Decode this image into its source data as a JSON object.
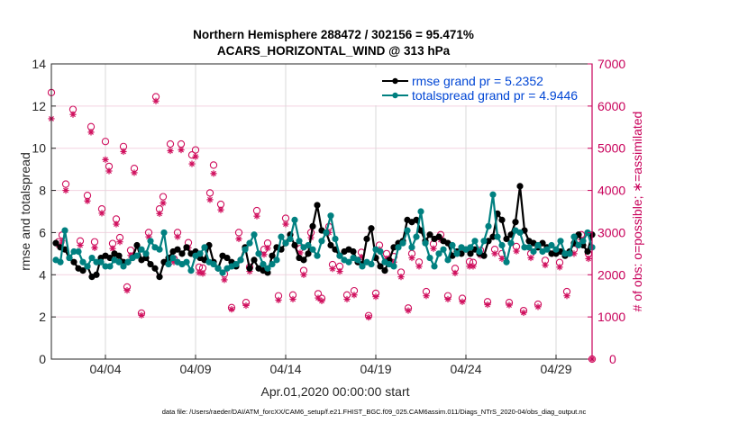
{
  "chart_data": {
    "type": "line",
    "title": "Northern Hemisphere 288472 / 302156 = 95.471%",
    "subtitle": "ACARS_HORIZONTAL_WIND @ 313 hPa",
    "xlabel": "Apr.01,2020 00:00:00 start",
    "ylabel": "rmse and totalspread",
    "y2label": "# of obs: o=possible; ∗=assimilated",
    "footnote": "data file: /Users/raeder/DAI/ATM_forcXX/CAM6_setup/f.e21.FHIST_BGC.f09_025.CAM6assim.011/Diags_NTrS_2020-04/obs_diag_output.nc",
    "xlim_days": [
      1,
      31
    ],
    "ylim": [
      0,
      14
    ],
    "y2lim": [
      0,
      7000
    ],
    "grid": true,
    "legend_position": "top-right",
    "x_ticks": [
      {
        "day": 4,
        "label": "04/04"
      },
      {
        "day": 9,
        "label": "04/09"
      },
      {
        "day": 14,
        "label": "04/14"
      },
      {
        "day": 19,
        "label": "04/19"
      },
      {
        "day": 24,
        "label": "04/24"
      },
      {
        "day": 29,
        "label": "04/29"
      }
    ],
    "y_ticks": [
      "0",
      "2",
      "4",
      "6",
      "8",
      "10",
      "12",
      "14"
    ],
    "y2_ticks": [
      "0",
      "1000",
      "2000",
      "3000",
      "4000",
      "5000",
      "6000",
      "7000"
    ],
    "x_start_day": 1,
    "x_step_days": 0.25,
    "series": [
      {
        "name": "rmse",
        "legend": "rmse grand pr = 5.2352",
        "color": "#000000",
        "values": [
          5.5,
          5.3,
          5.2,
          4.8,
          4.6,
          4.3,
          4.2,
          4.4,
          3.9,
          4.0,
          4.8,
          4.9,
          4.8,
          5.0,
          4.9,
          4.6,
          4.6,
          4.8,
          5.4,
          4.7,
          4.8,
          4.5,
          4.3,
          3.9,
          4.6,
          4.8,
          5.1,
          5.2,
          5.0,
          5.3,
          5.0,
          5.1,
          4.8,
          4.7,
          5.4,
          4.6,
          4.3,
          4.9,
          4.8,
          4.6,
          4.4,
          4.7,
          5.3,
          4.3,
          4.7,
          4.3,
          4.2,
          4.1,
          4.9,
          5.3,
          5.2,
          5.5,
          5.9,
          5.4,
          4.8,
          4.7,
          5.0,
          6.3,
          7.3,
          6.1,
          6.0,
          5.4,
          5.2,
          4.9,
          5.1,
          5.2,
          5.1,
          4.6,
          4.5,
          5.7,
          6.2,
          4.8,
          4.4,
          4.2,
          4.7,
          5.3,
          5.5,
          5.6,
          6.6,
          6.5,
          6.6,
          6.1,
          5.6,
          5.9,
          5.7,
          5.8,
          5.6,
          5.5,
          4.9,
          5.1,
          5.0,
          5.2,
          5.0,
          5.2,
          5.0,
          4.9,
          5.6,
          5.8,
          6.9,
          6.6,
          5.7,
          5.9,
          6.5,
          8.2,
          6.1,
          5.6,
          5.5,
          5.3,
          5.5,
          5.3,
          5.0,
          5.0,
          5.1,
          4.9,
          5.1,
          5.5,
          5.9,
          5.4,
          5.1,
          5.9
        ]
      },
      {
        "name": "totalspread",
        "legend": "totalspread grand pr = 4.9446",
        "color": "#008080",
        "values": [
          4.7,
          4.6,
          6.1,
          4.8,
          5.1,
          5.1,
          4.6,
          4.4,
          4.8,
          4.6,
          4.6,
          4.4,
          4.4,
          4.7,
          4.6,
          4.4,
          4.6,
          4.8,
          4.9,
          5.2,
          5.0,
          5.6,
          5.3,
          5.2,
          6.0,
          4.5,
          4.8,
          4.6,
          4.5,
          4.6,
          4.2,
          4.9,
          5.0,
          5.3,
          4.6,
          4.5,
          4.3,
          4.1,
          4.3,
          4.4,
          4.5,
          4.7,
          5.2,
          5.5,
          5.9,
          5.0,
          4.5,
          4.3,
          4.5,
          4.7,
          5.8,
          5.5,
          5.7,
          6.6,
          5.6,
          5.3,
          5.4,
          5.2,
          4.9,
          5.6,
          6.0,
          6.8,
          5.7,
          4.9,
          4.7,
          4.6,
          4.8,
          4.7,
          4.4,
          4.6,
          4.5,
          5.2,
          5.1,
          4.6,
          4.5,
          4.4,
          5.3,
          5.5,
          6.1,
          5.3,
          5.8,
          7.0,
          5.5,
          4.8,
          4.4,
          5.0,
          5.2,
          4.7,
          5.4,
          5.0,
          5.3,
          5.2,
          5.3,
          5.6,
          5.1,
          5.6,
          6.3,
          7.8,
          5.8,
          5.4,
          4.6,
          5.5,
          6.1,
          6.0,
          5.3,
          5.3,
          5.1,
          5.4,
          5.1,
          5.2,
          5.4,
          5.2,
          5.6,
          5.0,
          5.0,
          5.8,
          5.4,
          5.6,
          6.0,
          5.3
        ]
      }
    ],
    "obs_possible": {
      "marker": "o",
      "color": "#d0105e",
      "days": [
        1.0,
        1.4,
        1.6,
        1.8,
        2.2,
        2.6,
        3.0,
        3.2,
        3.4,
        3.8,
        4.0,
        4.2,
        4.4,
        4.6,
        4.8,
        5.0,
        5.2,
        5.4,
        5.6,
        6.0,
        6.4,
        6.8,
        7.0,
        7.2,
        7.6,
        7.8,
        8.0,
        8.2,
        8.6,
        8.8,
        9.0,
        9.2,
        9.4,
        9.8,
        10.0,
        10.4,
        10.6,
        11.0,
        11.4,
        11.8,
        12.0,
        12.4,
        12.8,
        13.0,
        13.6,
        14.0,
        14.4,
        14.8,
        15.0,
        15.4,
        15.8,
        16.0,
        16.4,
        16.6,
        17.0,
        17.4,
        17.8,
        18.2,
        18.6,
        19.0,
        19.2,
        19.6,
        20.0,
        20.4,
        20.8,
        21.0,
        21.4,
        21.8,
        22.2,
        22.6,
        23.0,
        23.4,
        23.8,
        24.2,
        24.4,
        24.8,
        25.2,
        25.6,
        26.0,
        26.4,
        26.8,
        27.2,
        27.6,
        28.0,
        28.4,
        28.8,
        29.2,
        29.6,
        30.0,
        30.4,
        30.8,
        31.0
      ],
      "values": [
        6320,
        2780,
        2940,
        4150,
        5920,
        2800,
        3880,
        5510,
        2780,
        3560,
        5160,
        4570,
        2740,
        3320,
        2880,
        5040,
        1710,
        2580,
        4520,
        1090,
        3000,
        6220,
        3560,
        3850,
        5100,
        2380,
        3000,
        5100,
        2760,
        4840,
        4960,
        2180,
        2160,
        3940,
        4600,
        3670,
        2020,
        1220,
        3000,
        1340,
        2180,
        3520,
        2600,
        2750,
        1500,
        3340,
        1520,
        2620,
        2100,
        3000,
        1550,
        1440,
        3140,
        2240,
        2200,
        1520,
        1620,
        2530,
        1030,
        1560,
        2700,
        2500,
        2430,
        2060,
        1210,
        2500,
        2300,
        1600,
        2730,
        2950,
        1500,
        2150,
        1440,
        2310,
        2290,
        2580,
        1360,
        2600,
        2500,
        1340,
        2670,
        1150,
        2500,
        1300,
        2340,
        2600,
        2290,
        1600,
        2600,
        2950,
        2500,
        0
      ]
    },
    "obs_assimilated": {
      "marker": "*",
      "color": "#d0105e",
      "days": [
        1.0,
        1.4,
        1.6,
        1.8,
        2.2,
        2.6,
        3.0,
        3.2,
        3.4,
        3.8,
        4.0,
        4.2,
        4.4,
        4.6,
        4.8,
        5.0,
        5.2,
        5.4,
        5.6,
        6.0,
        6.4,
        6.8,
        7.0,
        7.2,
        7.6,
        7.8,
        8.0,
        8.2,
        8.6,
        8.8,
        9.0,
        9.2,
        9.4,
        9.8,
        10.0,
        10.4,
        10.6,
        11.0,
        11.4,
        11.8,
        12.0,
        12.4,
        12.8,
        13.0,
        13.6,
        14.0,
        14.4,
        14.8,
        15.0,
        15.4,
        15.8,
        16.0,
        16.4,
        16.6,
        17.0,
        17.4,
        17.8,
        18.2,
        18.6,
        19.0,
        19.2,
        19.6,
        20.0,
        20.4,
        20.8,
        21.0,
        21.4,
        21.8,
        22.2,
        22.6,
        23.0,
        23.4,
        23.8,
        24.2,
        24.4,
        24.8,
        25.2,
        25.6,
        26.0,
        26.4,
        26.8,
        27.2,
        27.6,
        28.0,
        28.4,
        28.8,
        29.2,
        29.6,
        30.0,
        30.4,
        30.8,
        31.0
      ],
      "values": [
        5700,
        2700,
        2800,
        4000,
        5800,
        2700,
        3750,
        5380,
        2640,
        3460,
        4730,
        4460,
        2620,
        3200,
        2780,
        4920,
        1630,
        2460,
        4420,
        1040,
        2900,
        6120,
        3450,
        3700,
        4940,
        2300,
        2900,
        4960,
        2640,
        4630,
        4800,
        2050,
        2030,
        3780,
        4400,
        3540,
        1880,
        1180,
        2850,
        1270,
        2080,
        3390,
        2480,
        2630,
        1400,
        3200,
        1420,
        2520,
        2000,
        2880,
        1450,
        1380,
        3000,
        2140,
        2080,
        1420,
        1520,
        2420,
        990,
        1480,
        2600,
        2380,
        2300,
        1950,
        1150,
        2400,
        2200,
        1500,
        2620,
        2830,
        1420,
        2040,
        1360,
        2200,
        2200,
        2460,
        1290,
        2500,
        2380,
        1280,
        2560,
        1100,
        2400,
        1240,
        2230,
        2500,
        2180,
        1500,
        2500,
        2830,
        2380,
        0
      ]
    }
  }
}
